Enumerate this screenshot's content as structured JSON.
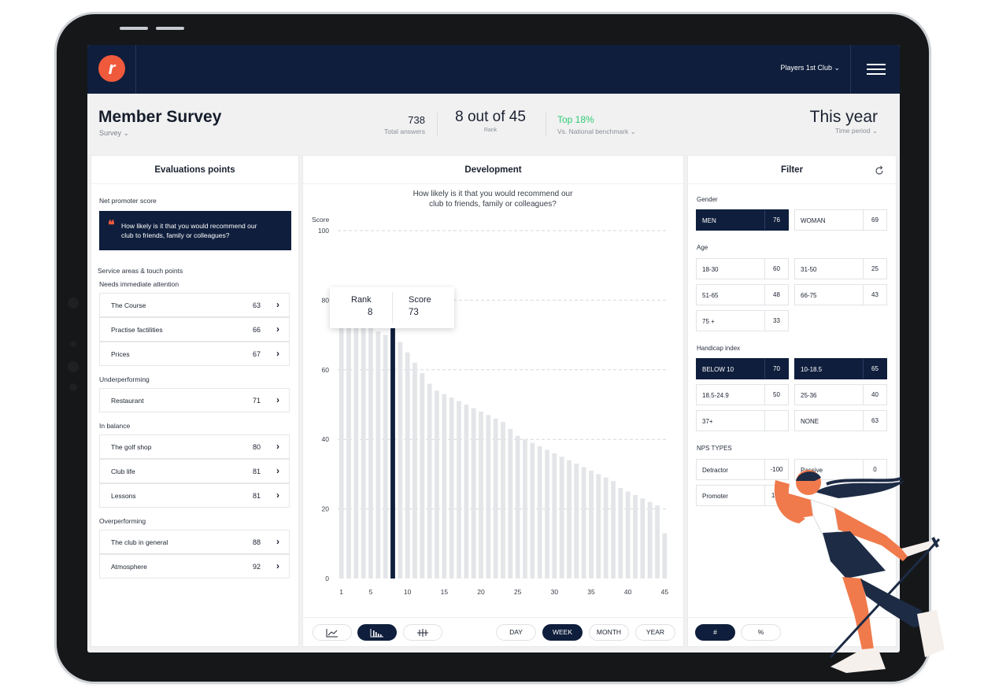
{
  "nav": {
    "logo_letter": "r",
    "club_selector": "Players 1st Club ⌄"
  },
  "header": {
    "title": "Member Survey",
    "subtitle": "Survey ⌄",
    "total_answers_value": "738",
    "total_answers_label": "Total answers",
    "rank_value": "8 out of 45",
    "rank_label": "Rank",
    "benchmark_value": "Top 18%",
    "benchmark_label": "Vs. National benchmark ⌄",
    "period_value": "This year",
    "period_label": "Time period ⌄"
  },
  "evaluation": {
    "title": "Evaluations points",
    "nps_label": "Net promoter score",
    "quote_mark": "❝",
    "nps_question": "How likely is it that you would recommend our club to friends, family or colleagues?",
    "service_label": "Service areas & touch points",
    "groups": [
      {
        "name": "Needs immediate attention",
        "color": "#ee5a5a",
        "items": [
          {
            "label": "The Course",
            "value": "63"
          },
          {
            "label": "Practise factilities",
            "value": "66"
          },
          {
            "label": "Prices",
            "value": "67"
          }
        ]
      },
      {
        "name": "Underperforming",
        "color": "#f6a25a",
        "items": [
          {
            "label": "Restaurant",
            "value": "71"
          }
        ]
      },
      {
        "name": "In balance",
        "color": "#52b5e8",
        "items": [
          {
            "label": "The golf shop",
            "value": "80"
          },
          {
            "label": "Club life",
            "value": "81"
          },
          {
            "label": "Lessons",
            "value": "81"
          }
        ]
      },
      {
        "name": "Overperforming",
        "color": "#7e4fcf",
        "items": [
          {
            "label": "The club in general",
            "value": "88"
          },
          {
            "label": "Atmosphere",
            "value": "92"
          }
        ]
      }
    ]
  },
  "development": {
    "title": "Development",
    "tooltip": {
      "rank_label": "Rank",
      "rank_value": "8",
      "score_label": "Score",
      "score_value": "73"
    },
    "chart_icons": [
      "line-chart-icon",
      "bar-chart-icon",
      "scatter-chart-icon"
    ],
    "periods": [
      "DAY",
      "WEEK",
      "MONTH",
      "YEAR"
    ],
    "active_period": "WEEK"
  },
  "chart_data": {
    "type": "bar",
    "title": "How likely is it that you would recommend our club to friends, family or colleagues?",
    "ylabel": "Score",
    "ylim": [
      0,
      100
    ],
    "yticks": [
      0,
      20,
      40,
      60,
      80,
      100
    ],
    "xticks": [
      1,
      5,
      10,
      15,
      20,
      25,
      30,
      35,
      40,
      45
    ],
    "highlight_index": 8,
    "highlight_color": "#0f1e3c",
    "bar_color": "#e3e5e8",
    "x": [
      1,
      2,
      3,
      4,
      5,
      6,
      7,
      8,
      9,
      10,
      11,
      12,
      13,
      14,
      15,
      16,
      17,
      18,
      19,
      20,
      21,
      22,
      23,
      24,
      25,
      26,
      27,
      28,
      29,
      30,
      31,
      32,
      33,
      34,
      35,
      36,
      37,
      38,
      39,
      40,
      41,
      42,
      43,
      44,
      45
    ],
    "values": [
      75,
      75,
      74,
      73,
      72,
      71,
      70,
      73,
      68,
      65,
      62,
      59,
      56,
      54,
      53,
      52,
      51,
      50,
      49,
      48,
      47,
      46,
      45,
      43,
      41,
      40,
      39,
      38,
      37,
      36,
      35,
      34,
      33,
      32,
      31,
      30,
      29,
      28,
      26,
      25,
      24,
      23,
      22,
      21,
      13
    ]
  },
  "filter": {
    "title": "Filter",
    "refresh_icon": "refresh-icon",
    "gender_label": "Gender",
    "gender": [
      {
        "label": "MEN",
        "value": "76",
        "selected": true
      },
      {
        "label": "WOMAN",
        "value": "69",
        "selected": false
      }
    ],
    "age_label": "Age",
    "age": [
      {
        "label": "18-30",
        "value": "60"
      },
      {
        "label": "31-50",
        "value": "25"
      },
      {
        "label": "51-65",
        "value": "48"
      },
      {
        "label": "66-75",
        "value": "43"
      },
      {
        "label": "75 +",
        "value": "33"
      }
    ],
    "handicap_label": "Handicap index",
    "handicap": [
      {
        "label": "BELOW 10",
        "value": "70",
        "selected": true
      },
      {
        "label": "10-18.5",
        "value": "65",
        "selected": true
      },
      {
        "label": "18.5-24.9",
        "value": "50",
        "selected": false
      },
      {
        "label": "25-36",
        "value": "40",
        "selected": false
      },
      {
        "label": "37+",
        "value": "",
        "selected": false
      },
      {
        "label": "NONE",
        "value": "63",
        "selected": false
      }
    ],
    "nps_label": "NPS TYPES",
    "nps": [
      {
        "label": "Detractor",
        "value": "-100"
      },
      {
        "label": "Passive",
        "value": "0"
      },
      {
        "label": "Promoter",
        "value": "100"
      }
    ],
    "units": [
      "#",
      "%"
    ],
    "active_unit": "#"
  },
  "colors": {
    "navy": "#0f1e3c",
    "accent": "#f05a3c",
    "green": "#2ecc71"
  }
}
